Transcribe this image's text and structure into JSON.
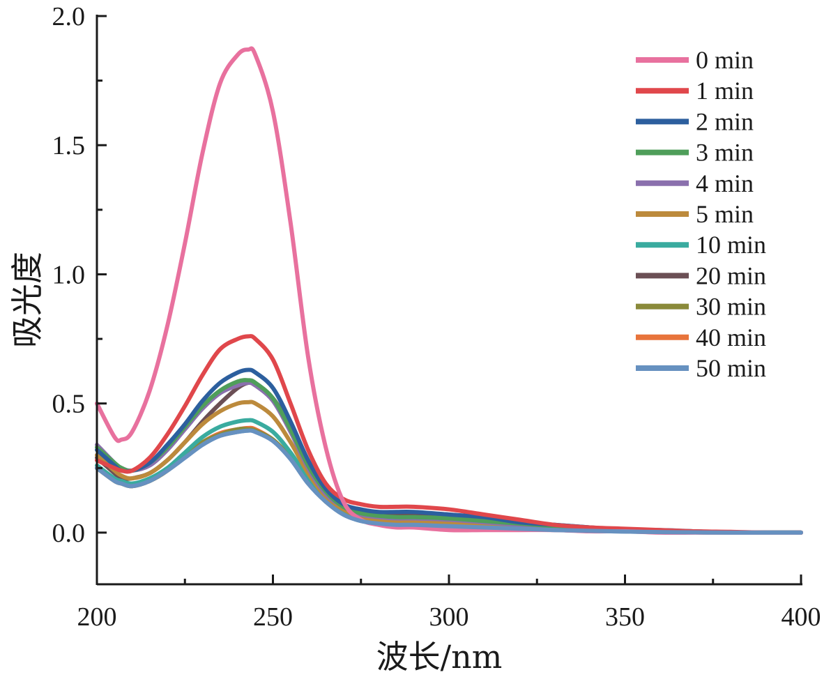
{
  "chart_data": {
    "type": "line",
    "title": "",
    "xlabel": "波长/nm",
    "ylabel": "吸光度",
    "xlim": [
      200,
      400
    ],
    "ylim": [
      -0.2,
      2.0
    ],
    "xticks": [
      200,
      250,
      300,
      350,
      400
    ],
    "xtick_labels": [
      "200",
      "250",
      "300",
      "350",
      "400"
    ],
    "yticks": [
      0.0,
      0.5,
      1.0,
      1.5,
      2.0
    ],
    "ytick_labels": [
      "0.0",
      "0.5",
      "1.0",
      "1.5",
      "2.0"
    ],
    "grid": false,
    "legend_position": "top-right",
    "x": [
      200,
      205,
      207,
      210,
      215,
      220,
      225,
      230,
      235,
      240,
      243,
      245,
      250,
      255,
      260,
      265,
      270,
      275,
      280,
      285,
      290,
      300,
      310,
      320,
      330,
      340,
      350,
      360,
      370,
      380,
      390,
      400
    ],
    "series": [
      {
        "name": "0 min",
        "color": "#e8719e",
        "values": [
          0.5,
          0.37,
          0.36,
          0.39,
          0.55,
          0.8,
          1.12,
          1.47,
          1.74,
          1.85,
          1.87,
          1.85,
          1.63,
          1.2,
          0.68,
          0.33,
          0.12,
          0.05,
          0.03,
          0.02,
          0.02,
          0.01,
          0.01,
          0.01,
          0.01,
          0.005,
          0.005,
          0.0,
          0.0,
          0.0,
          0.0,
          0.0
        ]
      },
      {
        "name": "1 min",
        "color": "#e0474b",
        "values": [
          0.28,
          0.25,
          0.24,
          0.24,
          0.29,
          0.38,
          0.49,
          0.61,
          0.71,
          0.75,
          0.76,
          0.75,
          0.67,
          0.5,
          0.32,
          0.19,
          0.13,
          0.11,
          0.1,
          0.1,
          0.1,
          0.09,
          0.07,
          0.05,
          0.03,
          0.02,
          0.015,
          0.01,
          0.005,
          0.003,
          0.0,
          0.0
        ]
      },
      {
        "name": "2 min",
        "color": "#2c5f9e",
        "values": [
          0.32,
          0.26,
          0.24,
          0.24,
          0.27,
          0.34,
          0.42,
          0.51,
          0.58,
          0.62,
          0.63,
          0.62,
          0.56,
          0.43,
          0.28,
          0.17,
          0.11,
          0.09,
          0.08,
          0.08,
          0.08,
          0.07,
          0.06,
          0.04,
          0.03,
          0.02,
          0.01,
          0.01,
          0.005,
          0.0,
          0.0,
          0.0
        ]
      },
      {
        "name": "3 min",
        "color": "#4f9e5a",
        "values": [
          0.33,
          0.27,
          0.25,
          0.24,
          0.27,
          0.33,
          0.41,
          0.49,
          0.55,
          0.585,
          0.59,
          0.58,
          0.52,
          0.4,
          0.26,
          0.16,
          0.1,
          0.075,
          0.065,
          0.06,
          0.06,
          0.055,
          0.045,
          0.035,
          0.025,
          0.015,
          0.01,
          0.005,
          0.003,
          0.0,
          0.0,
          0.0
        ]
      },
      {
        "name": "4 min",
        "color": "#8a70ad",
        "values": [
          0.34,
          0.27,
          0.25,
          0.24,
          0.26,
          0.32,
          0.4,
          0.48,
          0.54,
          0.57,
          0.58,
          0.57,
          0.51,
          0.39,
          0.25,
          0.15,
          0.1,
          0.07,
          0.06,
          0.055,
          0.055,
          0.05,
          0.04,
          0.03,
          0.02,
          0.015,
          0.01,
          0.005,
          0.003,
          0.0,
          0.0,
          0.0
        ]
      },
      {
        "name": "5 min",
        "color": "#bc8a3c",
        "values": [
          0.3,
          0.24,
          0.22,
          0.21,
          0.23,
          0.28,
          0.35,
          0.42,
          0.47,
          0.5,
          0.505,
          0.5,
          0.45,
          0.35,
          0.23,
          0.14,
          0.09,
          0.06,
          0.05,
          0.045,
          0.045,
          0.04,
          0.035,
          0.025,
          0.02,
          0.01,
          0.008,
          0.004,
          0.002,
          0.0,
          0.0,
          0.0
        ]
      },
      {
        "name": "10 min",
        "color": "#3aab9f",
        "values": [
          0.26,
          0.21,
          0.2,
          0.19,
          0.21,
          0.25,
          0.31,
          0.37,
          0.41,
          0.43,
          0.435,
          0.43,
          0.39,
          0.31,
          0.21,
          0.13,
          0.08,
          0.055,
          0.045,
          0.04,
          0.04,
          0.035,
          0.03,
          0.02,
          0.015,
          0.01,
          0.006,
          0.003,
          0.001,
          0.0,
          0.0,
          0.0
        ]
      },
      {
        "name": "20 min",
        "color": "#6b4f55",
        "values": [
          0.29,
          0.23,
          0.21,
          0.21,
          0.23,
          0.28,
          0.35,
          0.43,
          0.5,
          0.56,
          0.58,
          0.57,
          0.52,
          0.41,
          0.27,
          0.17,
          0.11,
          0.085,
          0.075,
          0.075,
          0.075,
          0.07,
          0.055,
          0.04,
          0.03,
          0.02,
          0.01,
          0.005,
          0.003,
          0.0,
          0.0,
          0.0
        ]
      },
      {
        "name": "30 min",
        "color": "#8a8a3a",
        "values": [
          0.25,
          0.2,
          0.19,
          0.18,
          0.2,
          0.24,
          0.3,
          0.35,
          0.38,
          0.4,
          0.4,
          0.395,
          0.36,
          0.29,
          0.2,
          0.12,
          0.075,
          0.05,
          0.04,
          0.035,
          0.035,
          0.03,
          0.025,
          0.02,
          0.015,
          0.01,
          0.005,
          0.003,
          0.001,
          0.0,
          0.0,
          0.0
        ]
      },
      {
        "name": "40 min",
        "color": "#e8743b",
        "values": [
          0.25,
          0.2,
          0.19,
          0.18,
          0.2,
          0.24,
          0.3,
          0.35,
          0.385,
          0.4,
          0.405,
          0.4,
          0.36,
          0.29,
          0.2,
          0.12,
          0.075,
          0.05,
          0.04,
          0.035,
          0.035,
          0.03,
          0.025,
          0.02,
          0.015,
          0.01,
          0.005,
          0.003,
          0.001,
          0.0,
          0.0,
          0.0
        ]
      },
      {
        "name": "50 min",
        "color": "#6691c0",
        "values": [
          0.25,
          0.2,
          0.19,
          0.18,
          0.2,
          0.24,
          0.29,
          0.34,
          0.375,
          0.39,
          0.395,
          0.39,
          0.355,
          0.285,
          0.19,
          0.12,
          0.07,
          0.045,
          0.035,
          0.03,
          0.03,
          0.025,
          0.02,
          0.015,
          0.01,
          0.007,
          0.004,
          0.002,
          0.001,
          0.0,
          0.0,
          0.0
        ]
      }
    ]
  }
}
